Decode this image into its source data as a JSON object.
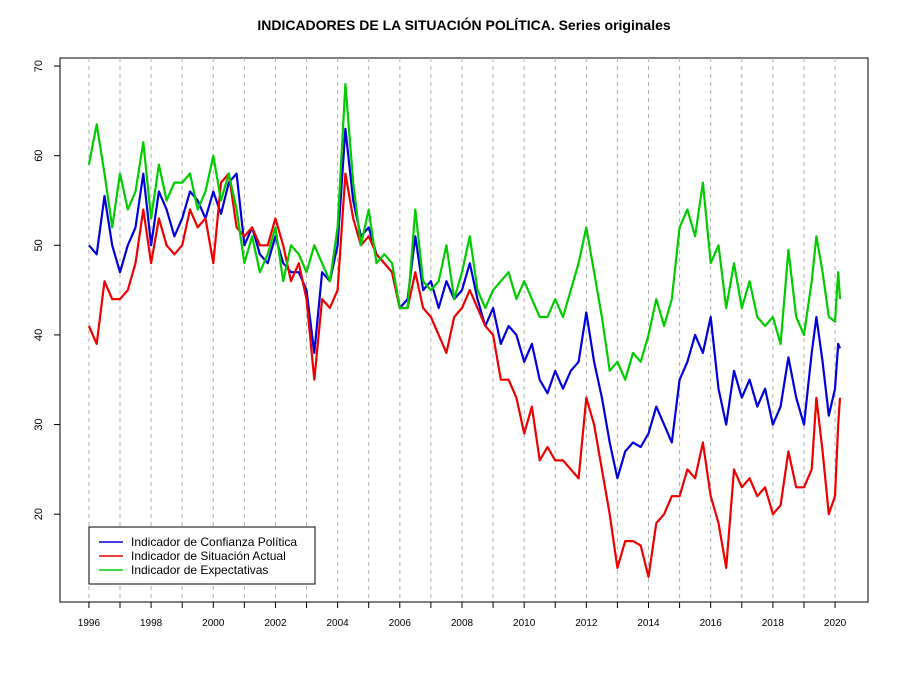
{
  "chart_data": {
    "type": "line",
    "title": "INDICADORES DE LA SITUACIÓN POLÍTICA. Series originales",
    "x": [
      1996,
      1996.25,
      1996.5,
      1996.75,
      1997,
      1997.25,
      1997.5,
      1997.75,
      1998,
      1998.25,
      1998.5,
      1998.75,
      1999,
      1999.25,
      1999.5,
      1999.75,
      2000,
      2000.25,
      2000.5,
      2000.75,
      2001,
      2001.25,
      2001.5,
      2001.75,
      2002,
      2002.25,
      2002.5,
      2002.75,
      2003,
      2003.25,
      2003.5,
      2003.75,
      2004,
      2004.25,
      2004.5,
      2004.75,
      2005,
      2005.25,
      2005.5,
      2005.75,
      2006,
      2006.25,
      2006.5,
      2006.75,
      2007,
      2007.25,
      2007.5,
      2007.75,
      2008,
      2008.25,
      2008.5,
      2008.75,
      2009,
      2009.25,
      2009.5,
      2009.75,
      2010,
      2010.25,
      2010.5,
      2010.75,
      2011,
      2011.25,
      2011.5,
      2011.75,
      2012,
      2012.25,
      2012.5,
      2012.75,
      2013,
      2013.25,
      2013.5,
      2013.75,
      2014,
      2014.25,
      2014.5,
      2014.75,
      2015,
      2015.25,
      2015.5,
      2015.75,
      2016,
      2016.25,
      2016.5,
      2016.75,
      2017,
      2017.25,
      2017.5,
      2017.75,
      2018,
      2018.25,
      2018.5,
      2018.75,
      2019,
      2019.25,
      2019.4,
      2019.6,
      2019.8,
      2020,
      2020.1,
      2020.16
    ],
    "series": [
      {
        "name": "Indicador de Confianza Política",
        "color": "#0000dd",
        "values": [
          50,
          49,
          55.5,
          50,
          47,
          50,
          52,
          58,
          50,
          56,
          54,
          51,
          53,
          56,
          55,
          53,
          56,
          53.5,
          57,
          58,
          50,
          52,
          49,
          48,
          51,
          48,
          47,
          47,
          45,
          38,
          47,
          46,
          50,
          63,
          55,
          51,
          52,
          49,
          48,
          47,
          43,
          44,
          51,
          45,
          46,
          43,
          46,
          44,
          45,
          48,
          44,
          41,
          43,
          39,
          41,
          40,
          37,
          39,
          35,
          33.5,
          36,
          34,
          36,
          37,
          42.5,
          37,
          33,
          28,
          24,
          27,
          28,
          27.5,
          29,
          32,
          30,
          28,
          35,
          37,
          40,
          38,
          42,
          34,
          30,
          36,
          33,
          35,
          32,
          34,
          30,
          32,
          37.5,
          33,
          30,
          38,
          42,
          37,
          31,
          34,
          39,
          38.5
        ]
      },
      {
        "name": "Indicador de Situación Actual",
        "color": "#ee0000",
        "values": [
          41,
          39,
          46,
          44,
          44,
          45,
          48,
          54,
          48,
          53,
          50,
          49,
          50,
          54,
          52,
          53,
          48,
          57,
          58,
          52,
          51,
          52,
          50,
          50,
          53,
          50,
          46,
          48,
          44,
          35,
          44,
          43,
          45,
          58,
          53,
          50,
          51,
          49,
          48,
          47,
          43,
          43,
          47,
          43,
          42,
          40,
          38,
          42,
          43,
          45,
          43,
          41,
          40,
          35,
          35,
          33,
          29,
          32,
          26,
          27.5,
          26,
          26,
          25,
          24,
          33,
          30,
          25,
          20,
          14,
          17,
          17,
          16.5,
          13,
          19,
          20,
          22,
          22,
          25,
          24,
          28,
          22,
          19,
          14,
          25,
          23,
          24,
          22,
          23,
          20,
          21,
          27,
          23,
          23,
          25,
          33,
          27,
          20,
          22,
          30,
          33
        ]
      },
      {
        "name": "Indicador de Expectativas",
        "color": "#00cc00",
        "values": [
          59,
          63.5,
          58,
          52,
          58,
          54,
          56,
          61.5,
          53,
          59,
          55,
          57,
          57,
          58,
          54,
          56,
          60,
          55,
          58,
          54,
          48,
          51,
          47,
          49,
          52,
          46,
          50,
          49,
          47,
          50,
          48,
          46,
          52,
          68,
          57,
          50,
          54,
          48,
          49,
          48,
          43,
          43,
          54,
          46,
          45,
          46,
          50,
          44,
          47,
          51,
          45,
          43,
          45,
          46,
          47,
          44,
          46,
          44,
          42,
          42,
          44,
          42,
          45,
          48,
          52,
          47,
          42,
          36,
          37,
          35,
          38,
          37,
          40,
          44,
          41,
          44,
          52,
          54,
          51,
          57,
          48,
          50,
          43,
          48,
          43,
          46,
          42,
          41,
          42,
          39,
          49.5,
          42,
          40,
          46,
          51,
          47,
          42,
          41.5,
          47,
          44
        ]
      }
    ],
    "xlim": [
      1995.07,
      2021.06
    ],
    "ylim": [
      10.2,
      70.9
    ],
    "xticks": [
      1996,
      1998,
      2000,
      2002,
      2004,
      2006,
      2008,
      2010,
      2012,
      2014,
      2016,
      2018,
      2020
    ],
    "xminorticks": [
      1997,
      1999,
      2001,
      2003,
      2005,
      2007,
      2009,
      2011,
      2013,
      2015,
      2017,
      2019
    ],
    "yticks": [
      20,
      30,
      40,
      50,
      60,
      70
    ],
    "grid": true,
    "legend": "bottomleft"
  }
}
